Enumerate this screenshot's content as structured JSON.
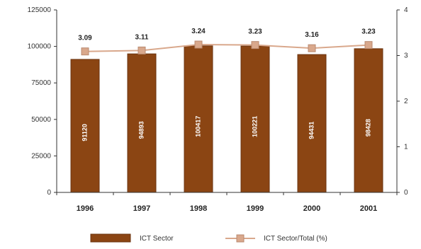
{
  "chart_data": {
    "type": "bar",
    "categories": [
      "1996",
      "1997",
      "1998",
      "1999",
      "2000",
      "2001"
    ],
    "series": [
      {
        "name": "ICT Sector",
        "type": "bar",
        "axis": "left",
        "values": [
          91120,
          94893,
          100417,
          100221,
          94431,
          98428
        ],
        "labels": [
          "91120",
          "94893",
          "100417",
          "100221",
          "94431",
          "98428"
        ]
      },
      {
        "name": "ICT Sector/Total (%)",
        "type": "line",
        "axis": "right",
        "values": [
          3.09,
          3.11,
          3.24,
          3.23,
          3.16,
          3.23
        ],
        "labels": [
          "3.09",
          "3.11",
          "3.24",
          "3.23",
          "3.16",
          "3.23"
        ]
      }
    ],
    "y_left": {
      "ticks": [
        "0",
        "25000",
        "50000",
        "75000",
        "100000",
        "125000"
      ],
      "ylim": [
        0,
        125000
      ]
    },
    "y_right": {
      "ticks": [
        "0",
        "1",
        "2",
        "3",
        "4"
      ],
      "ylim": [
        0,
        4
      ]
    },
    "grid": false,
    "legend_position": "bottom",
    "colors": {
      "bar_fill": "#8B4513",
      "bar_stroke": "#6b3410",
      "line": "#d9a88c",
      "marker": "#d9a88c",
      "marker_stroke": "#b98a70",
      "axis": "#333333"
    }
  }
}
